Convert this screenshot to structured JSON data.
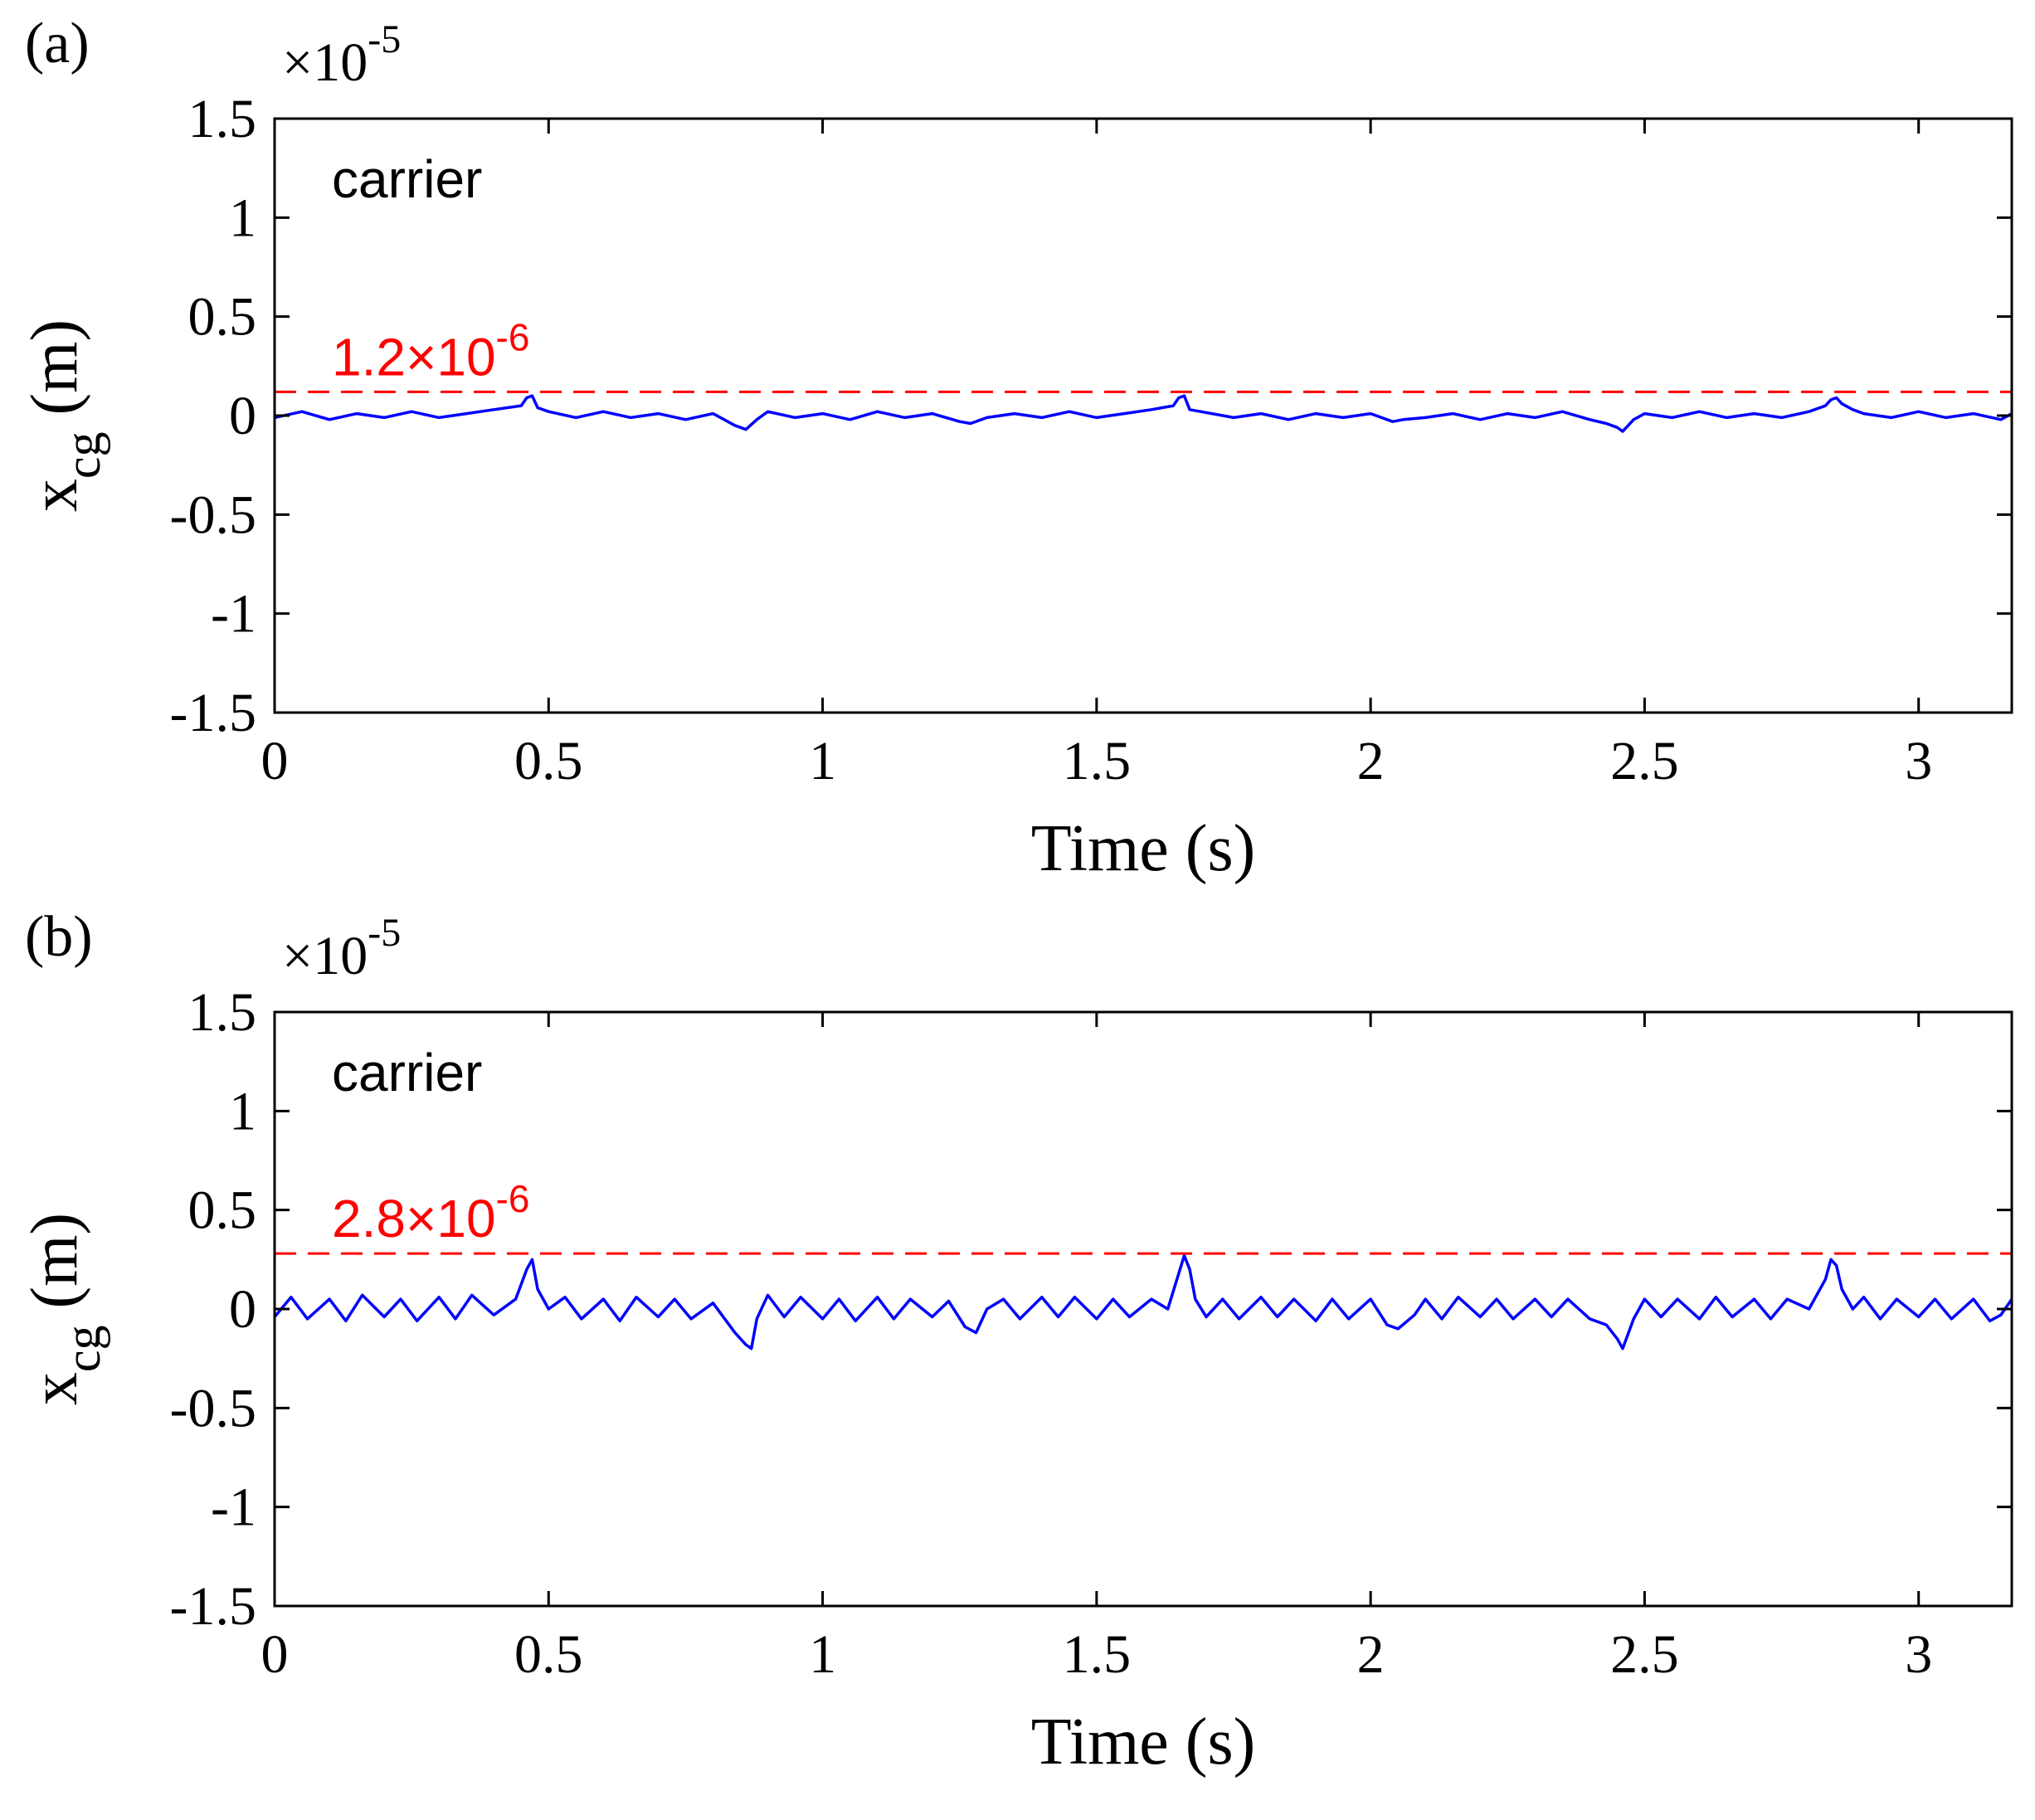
{
  "colors": {
    "series": "#0000ff",
    "threshold": "#ff0000",
    "axis": "#000000",
    "background": "#ffffff"
  },
  "chart_data": [
    {
      "type": "line",
      "panel_label": "(a)",
      "annotation": "carrier",
      "exponent_base": "×10",
      "exponent_power": "-5",
      "xlabel": "Time (s)",
      "ylabel_main": "x",
      "ylabel_sub": "cg",
      "ylabel_unit": " (m)",
      "xlim": [
        0,
        3.17
      ],
      "ylim": [
        -1.5,
        1.5
      ],
      "xticks": [
        0,
        0.5,
        1,
        1.5,
        2,
        2.5,
        3
      ],
      "xtick_labels": [
        "0",
        "0.5",
        "1",
        "1.5",
        "2",
        "2.5",
        "3"
      ],
      "yticks": [
        1.5,
        1,
        0.5,
        0,
        -0.5,
        -1,
        -1.5
      ],
      "ytick_labels": [
        "1.5",
        "1",
        "0.5",
        "0",
        "-0.5",
        "-1",
        "-1.5"
      ],
      "threshold": {
        "value": 0.12,
        "label_mantissa": "1.2×10",
        "label_power": "-6"
      },
      "series": [
        {
          "name": "x_cg",
          "x": [
            0,
            0.05,
            0.1,
            0.15,
            0.2,
            0.25,
            0.3,
            0.35,
            0.4,
            0.45,
            0.46,
            0.47,
            0.48,
            0.5,
            0.55,
            0.6,
            0.65,
            0.7,
            0.75,
            0.8,
            0.84,
            0.86,
            0.88,
            0.9,
            0.95,
            1.0,
            1.05,
            1.1,
            1.15,
            1.2,
            1.25,
            1.27,
            1.3,
            1.35,
            1.4,
            1.45,
            1.5,
            1.55,
            1.6,
            1.64,
            1.65,
            1.66,
            1.67,
            1.69,
            1.75,
            1.8,
            1.85,
            1.9,
            1.95,
            2.0,
            2.04,
            2.06,
            2.1,
            2.15,
            2.2,
            2.25,
            2.3,
            2.35,
            2.4,
            2.43,
            2.45,
            2.46,
            2.48,
            2.5,
            2.55,
            2.6,
            2.65,
            2.7,
            2.75,
            2.8,
            2.83,
            2.84,
            2.85,
            2.86,
            2.88,
            2.9,
            2.95,
            3.0,
            3.05,
            3.1,
            3.15,
            3.17
          ],
          "y": [
            -0.01,
            0.02,
            -0.02,
            0.01,
            -0.01,
            0.02,
            -0.01,
            0.01,
            0.03,
            0.05,
            0.09,
            0.1,
            0.04,
            0.02,
            -0.01,
            0.02,
            -0.01,
            0.01,
            -0.02,
            0.01,
            -0.05,
            -0.07,
            -0.02,
            0.02,
            -0.01,
            0.01,
            -0.02,
            0.02,
            -0.01,
            0.01,
            -0.03,
            -0.04,
            -0.01,
            0.01,
            -0.01,
            0.02,
            -0.01,
            0.01,
            0.03,
            0.05,
            0.09,
            0.1,
            0.03,
            0.02,
            -0.01,
            0.01,
            -0.02,
            0.01,
            -0.01,
            0.01,
            -0.03,
            -0.02,
            -0.01,
            0.01,
            -0.02,
            0.01,
            -0.01,
            0.02,
            -0.02,
            -0.04,
            -0.06,
            -0.08,
            -0.02,
            0.01,
            -0.01,
            0.02,
            -0.01,
            0.01,
            -0.01,
            0.02,
            0.05,
            0.08,
            0.09,
            0.06,
            0.03,
            0.01,
            -0.01,
            0.02,
            -0.01,
            0.01,
            -0.02,
            0.01
          ]
        }
      ]
    },
    {
      "type": "line",
      "panel_label": "(b)",
      "annotation": "carrier",
      "exponent_base": "×10",
      "exponent_power": "-5",
      "xlabel": "Time (s)",
      "ylabel_main": "x",
      "ylabel_sub": "cg",
      "ylabel_unit": " (m)",
      "xlim": [
        0,
        3.17
      ],
      "ylim": [
        -1.5,
        1.5
      ],
      "xticks": [
        0,
        0.5,
        1,
        1.5,
        2,
        2.5,
        3
      ],
      "xtick_labels": [
        "0",
        "0.5",
        "1",
        "1.5",
        "2",
        "2.5",
        "3"
      ],
      "yticks": [
        1.5,
        1,
        0.5,
        0,
        -0.5,
        -1,
        -1.5
      ],
      "ytick_labels": [
        "1.5",
        "1",
        "0.5",
        "0",
        "-0.5",
        "-1",
        "-1.5"
      ],
      "threshold": {
        "value": 0.28,
        "label_mantissa": "2.8×10",
        "label_power": "-6"
      },
      "series": [
        {
          "name": "x_cg",
          "x": [
            0,
            0.03,
            0.06,
            0.1,
            0.13,
            0.16,
            0.2,
            0.23,
            0.26,
            0.3,
            0.33,
            0.36,
            0.4,
            0.44,
            0.46,
            0.47,
            0.48,
            0.5,
            0.53,
            0.56,
            0.6,
            0.63,
            0.66,
            0.7,
            0.73,
            0.76,
            0.8,
            0.84,
            0.86,
            0.87,
            0.88,
            0.9,
            0.93,
            0.96,
            1.0,
            1.03,
            1.06,
            1.1,
            1.13,
            1.16,
            1.2,
            1.23,
            1.26,
            1.28,
            1.3,
            1.33,
            1.36,
            1.4,
            1.43,
            1.46,
            1.5,
            1.53,
            1.56,
            1.6,
            1.63,
            1.65,
            1.66,
            1.67,
            1.68,
            1.7,
            1.73,
            1.76,
            1.8,
            1.83,
            1.86,
            1.9,
            1.93,
            1.96,
            2.0,
            2.03,
            2.05,
            2.08,
            2.1,
            2.13,
            2.16,
            2.2,
            2.23,
            2.26,
            2.3,
            2.33,
            2.36,
            2.4,
            2.43,
            2.45,
            2.46,
            2.48,
            2.5,
            2.53,
            2.56,
            2.6,
            2.63,
            2.66,
            2.7,
            2.73,
            2.76,
            2.8,
            2.83,
            2.84,
            2.85,
            2.86,
            2.88,
            2.9,
            2.93,
            2.96,
            3.0,
            3.03,
            3.06,
            3.1,
            3.13,
            3.15,
            3.17
          ],
          "y": [
            -0.04,
            0.06,
            -0.05,
            0.05,
            -0.06,
            0.07,
            -0.04,
            0.05,
            -0.06,
            0.06,
            -0.05,
            0.07,
            -0.03,
            0.05,
            0.2,
            0.25,
            0.1,
            0.0,
            0.06,
            -0.05,
            0.05,
            -0.06,
            0.06,
            -0.04,
            0.05,
            -0.05,
            0.03,
            -0.12,
            -0.18,
            -0.2,
            -0.05,
            0.07,
            -0.04,
            0.06,
            -0.05,
            0.05,
            -0.06,
            0.06,
            -0.05,
            0.05,
            -0.04,
            0.04,
            -0.09,
            -0.12,
            0.0,
            0.05,
            -0.05,
            0.06,
            -0.04,
            0.06,
            -0.05,
            0.05,
            -0.04,
            0.05,
            0.0,
            0.18,
            0.27,
            0.2,
            0.05,
            -0.04,
            0.05,
            -0.05,
            0.06,
            -0.04,
            0.05,
            -0.06,
            0.05,
            -0.05,
            0.05,
            -0.08,
            -0.1,
            -0.03,
            0.05,
            -0.05,
            0.06,
            -0.04,
            0.05,
            -0.05,
            0.05,
            -0.04,
            0.05,
            -0.05,
            -0.08,
            -0.15,
            -0.2,
            -0.05,
            0.05,
            -0.04,
            0.05,
            -0.05,
            0.06,
            -0.04,
            0.05,
            -0.05,
            0.05,
            0.0,
            0.15,
            0.25,
            0.22,
            0.1,
            0.0,
            0.06,
            -0.05,
            0.05,
            -0.04,
            0.05,
            -0.05,
            0.05,
            -0.06,
            -0.03,
            0.05
          ]
        }
      ]
    }
  ]
}
